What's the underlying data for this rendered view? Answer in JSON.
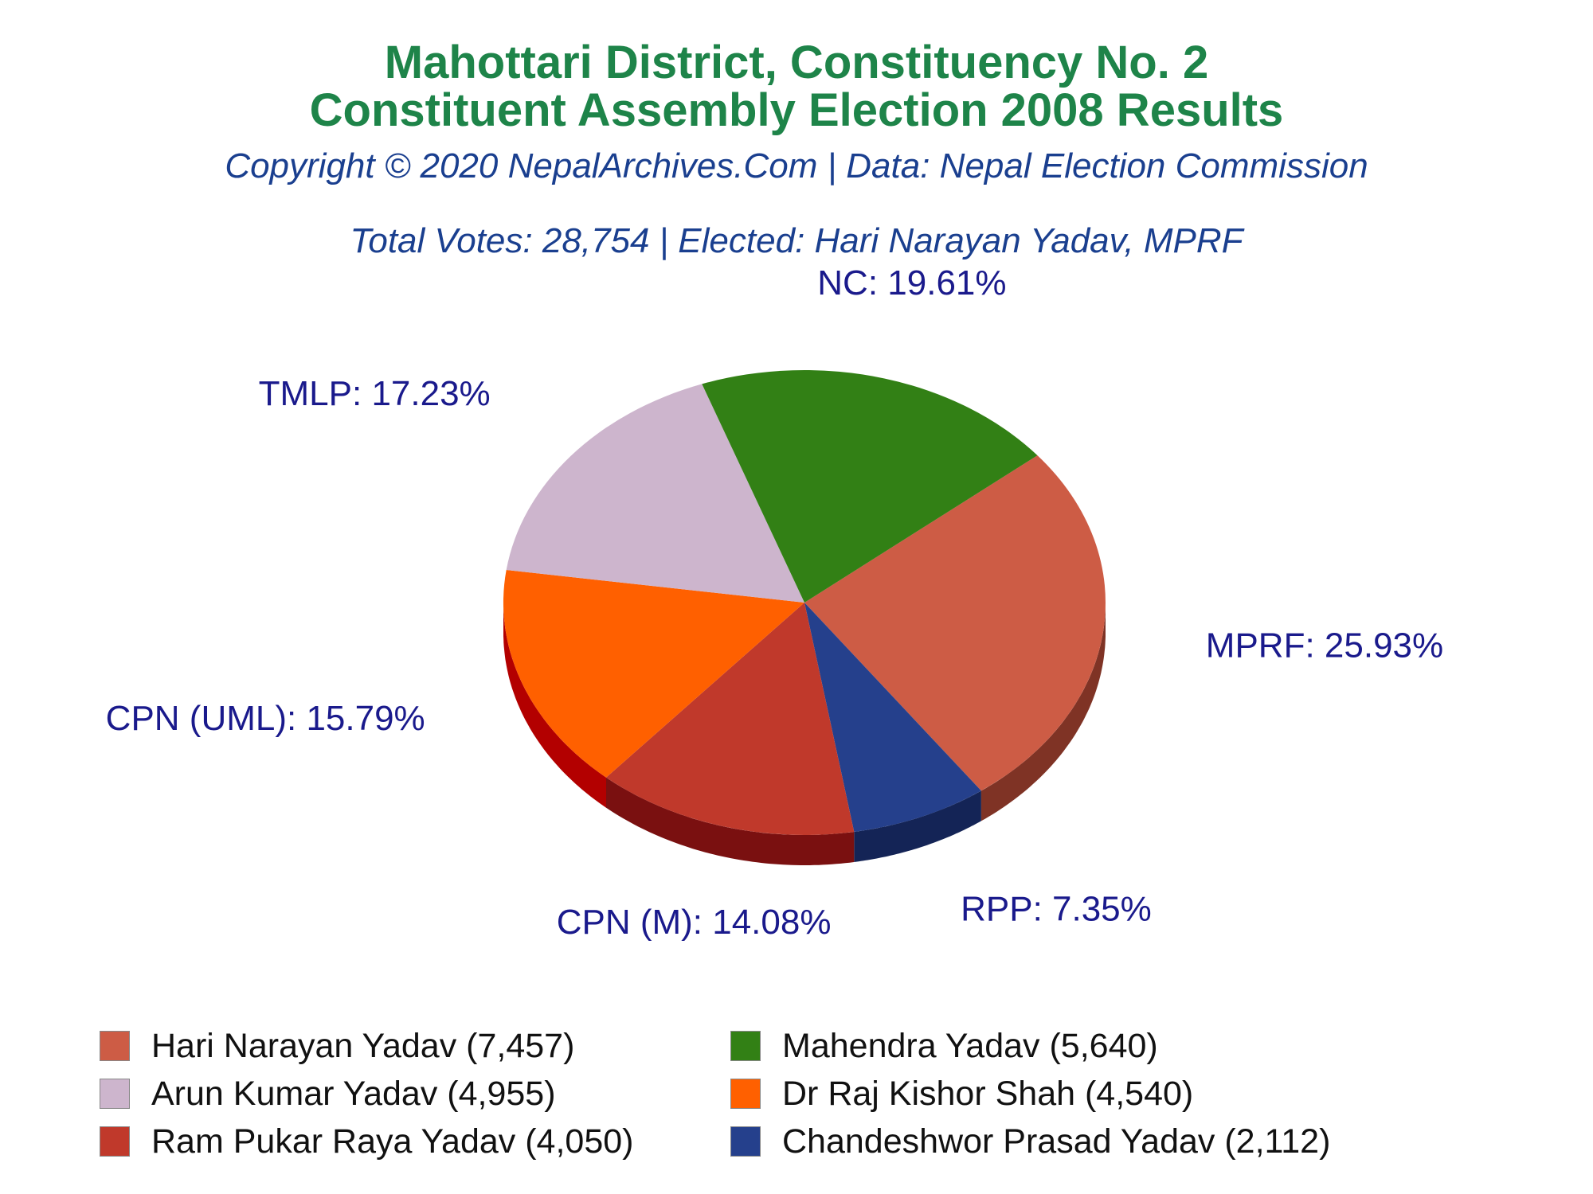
{
  "header": {
    "title_line1": "Mahottari District, Constituency No. 2",
    "title_line2": "Constituent Assembly Election 2008 Results",
    "credit": "Copyright © 2020 NepalArchives.Com | Data: Nepal Election Commission",
    "summary": "Total Votes: 28,754 | Elected: Hari Narayan Yadav, MPRF"
  },
  "chart_data": {
    "type": "pie",
    "style": "3d",
    "legend_position": "bottom",
    "slices": [
      {
        "party": "MPRF",
        "label": "MPRF: 25.93%",
        "percent": 25.93,
        "candidate": "Hari Narayan Yadav",
        "votes": 7457,
        "legend": "Hari Narayan Yadav (7,457)",
        "color": "#cd5c45",
        "side_color": "#7f3325"
      },
      {
        "party": "RPP",
        "label": "RPP: 7.35%",
        "percent": 7.35,
        "candidate": "Chandeshwor Prasad Yadav",
        "votes": 2112,
        "legend": "Chandeshwor Prasad Yadav (2,112)",
        "color": "#25408c",
        "side_color": "#142456"
      },
      {
        "party": "CPN (M)",
        "label": "CPN (M): 14.08%",
        "percent": 14.08,
        "candidate": "Ram Pukar Raya Yadav",
        "votes": 4050,
        "legend": "Ram Pukar Raya Yadav (4,050)",
        "color": "#c0392b",
        "side_color": "#7a1010"
      },
      {
        "party": "CPN (UML)",
        "label": "CPN (UML): 15.79%",
        "percent": 15.79,
        "candidate": "Dr Raj Kishor Shah",
        "votes": 4540,
        "legend": "Dr Raj Kishor Shah (4,540)",
        "color": "#ff6000",
        "side_color": "#b30000"
      },
      {
        "party": "TMLP",
        "label": "TMLP: 17.23%",
        "percent": 17.23,
        "candidate": "Arun Kumar Yadav",
        "votes": 4955,
        "legend": "Arun Kumar Yadav (4,955)",
        "color": "#cdb5cd",
        "side_color": "#7a5f78"
      },
      {
        "party": "NC",
        "label": "NC: 19.61%",
        "percent": 19.61,
        "candidate": "Mahendra Yadav",
        "votes": 5640,
        "legend": "Mahendra Yadav (5,640)",
        "color": "#328015",
        "side_color": "#143a07"
      }
    ]
  },
  "legend": {
    "items": [
      {
        "text": "Hari Narayan Yadav (7,457)",
        "color": "#cd5c45"
      },
      {
        "text": "Mahendra Yadav (5,640)",
        "color": "#328015"
      },
      {
        "text": "Arun Kumar Yadav (4,955)",
        "color": "#cdb5cd"
      },
      {
        "text": "Dr Raj Kishor Shah (4,540)",
        "color": "#ff6000"
      },
      {
        "text": "Ram Pukar Raya Yadav (4,050)",
        "color": "#c0392b"
      },
      {
        "text": "Chandeshwor Prasad Yadav (2,112)",
        "color": "#25408c"
      }
    ]
  }
}
